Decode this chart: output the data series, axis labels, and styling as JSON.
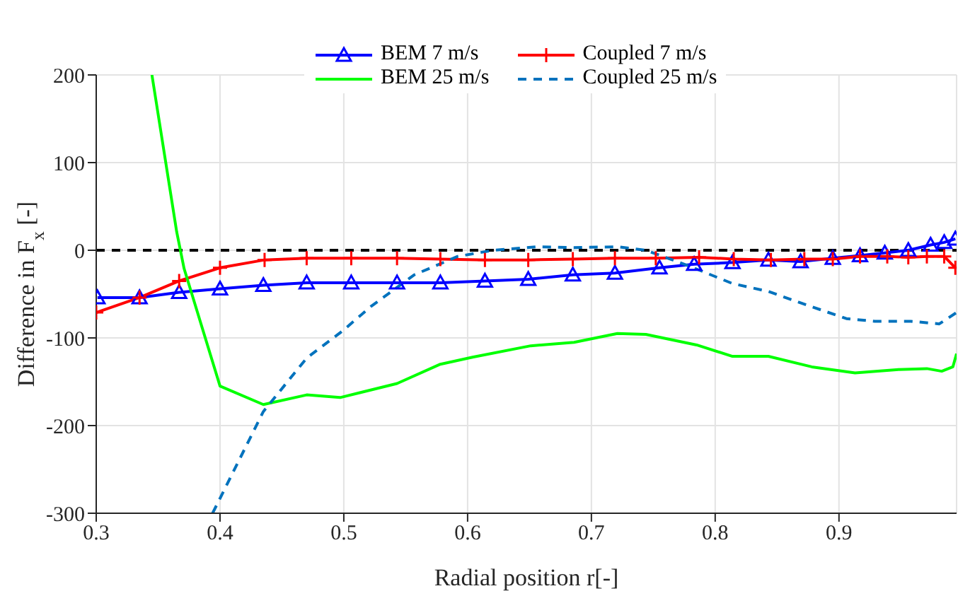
{
  "chart_data": {
    "type": "line",
    "xlabel": "Radial position r[-]",
    "ylabel": "Difference in F$_{x}$ [-]",
    "xlim": [
      0.3,
      0.995
    ],
    "xticks": [
      0.3,
      0.4,
      0.5,
      0.6,
      0.7,
      0.8,
      0.9
    ],
    "ylim": [
      -300,
      200
    ],
    "yticks": [
      -300,
      -200,
      -100,
      0,
      100,
      200
    ],
    "grid": true,
    "legend": "top",
    "line_style": "solid",
    "ref_lines": [
      {
        "axis": "y",
        "value": 0,
        "color": "#000000",
        "line_style": "dashed"
      }
    ],
    "series": [
      {
        "name": "BEM 7 m/s",
        "color": "#0000ff",
        "marker": "triangle",
        "x": [
          0.301,
          0.335,
          0.367,
          0.4,
          0.435,
          0.47,
          0.506,
          0.543,
          0.578,
          0.614,
          0.649,
          0.685,
          0.719,
          0.755,
          0.783,
          0.814,
          0.843,
          0.869,
          0.895,
          0.917,
          0.937,
          0.956,
          0.974,
          0.985,
          0.994
        ],
        "values": [
          -54,
          -54,
          -48,
          -44,
          -40,
          -37,
          -37,
          -37,
          -37,
          -35,
          -33,
          -28,
          -26,
          -20,
          -16,
          -14,
          -11,
          -13,
          -9,
          -6,
          -3,
          0,
          6,
          9,
          13
        ]
      },
      {
        "name": "Coupled 7 m/s",
        "color": "#ff0000",
        "marker": "cross",
        "x": [
          0.3,
          0.335,
          0.367,
          0.4,
          0.436,
          0.47,
          0.506,
          0.543,
          0.578,
          0.614,
          0.649,
          0.685,
          0.719,
          0.752,
          0.787,
          0.815,
          0.845,
          0.872,
          0.895,
          0.917,
          0.939,
          0.956,
          0.971,
          0.985,
          0.994
        ],
        "values": [
          -71,
          -54,
          -35,
          -20,
          -11,
          -9,
          -9,
          -9,
          -10,
          -11,
          -11,
          -10,
          -9,
          -9,
          -8,
          -10,
          -11,
          -10,
          -10,
          -7,
          -7,
          -8,
          -7,
          -7,
          -20
        ]
      },
      {
        "name": "BEM 25 m/s",
        "color": "#00ff00",
        "marker": "none",
        "x": [
          0.345,
          0.365,
          0.371,
          0.4,
          0.435,
          0.47,
          0.497,
          0.543,
          0.578,
          0.604,
          0.651,
          0.686,
          0.721,
          0.744,
          0.785,
          0.814,
          0.843,
          0.878,
          0.913,
          0.948,
          0.971,
          0.983,
          0.992,
          0.995
        ],
        "values": [
          200,
          21,
          -21,
          -155,
          -176,
          -165,
          -168,
          -152,
          -130,
          -122,
          -109,
          -105,
          -95,
          -96,
          -108,
          -121,
          -121,
          -133,
          -140,
          -136,
          -135,
          -138,
          -133,
          -118
        ]
      },
      {
        "name": "Coupled 25 m/s",
        "color": "#0072bd",
        "marker": "none",
        "line_style": "dashed",
        "x": [
          0.394,
          0.435,
          0.47,
          0.499,
          0.522,
          0.557,
          0.592,
          0.621,
          0.656,
          0.686,
          0.721,
          0.744,
          0.779,
          0.814,
          0.843,
          0.871,
          0.906,
          0.929,
          0.958,
          0.981,
          0.995
        ],
        "values": [
          -300,
          -184,
          -123,
          -92,
          -64,
          -28,
          -7,
          0,
          4,
          3,
          4,
          0,
          -18,
          -38,
          -47,
          -61,
          -78,
          -81,
          -81,
          -84,
          -71
        ]
      }
    ]
  }
}
